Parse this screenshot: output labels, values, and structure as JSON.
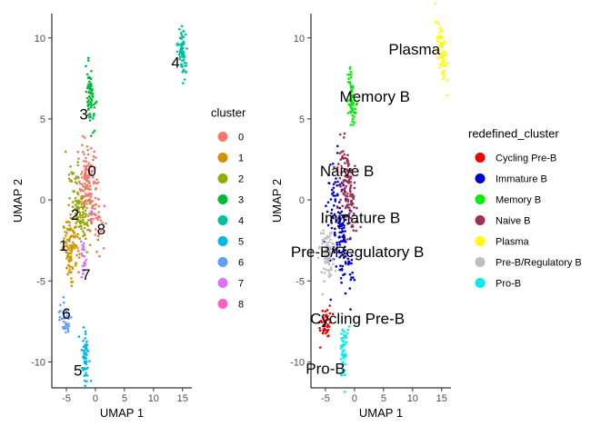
{
  "chart_data": [
    {
      "type": "scatter",
      "xlabel": "UMAP 1",
      "ylabel": "UMAP 2",
      "xlim": [
        -7.5,
        16.6
      ],
      "ylim": [
        -11.6,
        11.5
      ],
      "x_ticks": [
        -5,
        0,
        5,
        10,
        15
      ],
      "y_ticks": [
        -10,
        -5,
        0,
        5,
        10
      ],
      "grid": false,
      "legend": {
        "title": "cluster",
        "position": "right"
      },
      "series": [
        {
          "name": "0",
          "color": "#F8766D",
          "centroid": [
            -1.2,
            0.8
          ],
          "spread": [
            0.9,
            1.4
          ],
          "tilt": -0.35,
          "n": 160
        },
        {
          "name": "1",
          "color": "#D39200",
          "centroid": [
            -4.2,
            -3.0
          ],
          "spread": [
            0.7,
            0.9
          ],
          "tilt": 0.0,
          "n": 110
        },
        {
          "name": "2",
          "color": "#93AA00",
          "centroid": [
            -2.6,
            -0.3
          ],
          "spread": [
            0.8,
            1.2
          ],
          "tilt": -0.3,
          "n": 110
        },
        {
          "name": "3",
          "color": "#00BA38",
          "centroid": [
            -0.8,
            6.2
          ],
          "spread": [
            0.35,
            1.0
          ],
          "tilt": -0.2,
          "n": 70
        },
        {
          "name": "4",
          "color": "#00C19F",
          "centroid": [
            14.9,
            9.2
          ],
          "spread": [
            0.35,
            0.9
          ],
          "tilt": -0.3,
          "n": 70
        },
        {
          "name": "5",
          "color": "#00B9E3",
          "centroid": [
            -1.8,
            -9.5
          ],
          "spread": [
            0.35,
            0.8
          ],
          "tilt": 0.0,
          "n": 55
        },
        {
          "name": "6",
          "color": "#619CFF",
          "centroid": [
            -5.2,
            -7.4
          ],
          "spread": [
            0.5,
            0.5
          ],
          "tilt": 0.0,
          "n": 40
        },
        {
          "name": "7",
          "color": "#DB72FB",
          "centroid": [
            -2.1,
            -3.6
          ],
          "spread": [
            0.2,
            0.7
          ],
          "tilt": 0.0,
          "n": 25
        },
        {
          "name": "8",
          "color": "#FF61C3",
          "centroid": [
            -0.6,
            -1.0
          ],
          "spread": [
            0.2,
            0.4
          ],
          "tilt": 0.0,
          "n": 10
        }
      ],
      "annotations": [
        {
          "text": "0",
          "x": -0.6,
          "y": 1.8
        },
        {
          "text": "1",
          "x": -5.5,
          "y": -2.8
        },
        {
          "text": "2",
          "x": -3.5,
          "y": -0.9
        },
        {
          "text": "3",
          "x": -2.0,
          "y": 5.3
        },
        {
          "text": "4",
          "x": 13.8,
          "y": 8.5
        },
        {
          "text": "5",
          "x": -3.0,
          "y": -10.5
        },
        {
          "text": "6",
          "x": -5.0,
          "y": -7.0
        },
        {
          "text": "7",
          "x": -1.6,
          "y": -4.6
        },
        {
          "text": "8",
          "x": 1.0,
          "y": -1.8
        }
      ]
    },
    {
      "type": "scatter",
      "xlabel": "UMAP 1",
      "ylabel": "UMAP 2",
      "xlim": [
        -7.5,
        16.6
      ],
      "ylim": [
        -11.6,
        11.5
      ],
      "x_ticks": [
        -5,
        0,
        5,
        10,
        15
      ],
      "y_ticks": [
        -10,
        -5,
        0,
        5,
        10
      ],
      "grid": false,
      "legend": {
        "title": "redefined_cluster",
        "position": "right"
      },
      "series": [
        {
          "name": "Cycling Pre-B",
          "color": "#EE0000",
          "centroid": [
            -5.0,
            -7.6
          ],
          "spread": [
            0.5,
            0.5
          ],
          "tilt": 0.0,
          "n": 45
        },
        {
          "name": "Immature B",
          "color": "#0000CC",
          "centroid": [
            -2.5,
            -1.8
          ],
          "spread": [
            0.9,
            1.9
          ],
          "tilt": -0.3,
          "n": 160
        },
        {
          "name": "Memory B",
          "color": "#00EE00",
          "centroid": [
            -0.5,
            6.2
          ],
          "spread": [
            0.35,
            1.0
          ],
          "tilt": -0.2,
          "n": 70
        },
        {
          "name": "Naive B",
          "color": "#A0304F",
          "centroid": [
            -1.2,
            0.8
          ],
          "spread": [
            0.7,
            1.3
          ],
          "tilt": -0.35,
          "n": 130
        },
        {
          "name": "Plasma",
          "color": "#FFFF00",
          "centroid": [
            14.9,
            9.3
          ],
          "spread": [
            0.35,
            0.9
          ],
          "tilt": -0.3,
          "n": 70
        },
        {
          "name": "Pre-B/Regulatory B",
          "color": "#BEBEBE",
          "centroid": [
            -4.8,
            -3.3
          ],
          "spread": [
            0.6,
            0.8
          ],
          "tilt": 0.0,
          "n": 90
        },
        {
          "name": "Pro-B",
          "color": "#00EEEE",
          "centroid": [
            -1.9,
            -9.5
          ],
          "spread": [
            0.35,
            0.8
          ],
          "tilt": 0.0,
          "n": 55
        }
      ],
      "annotations": [
        {
          "text": "Plasma",
          "x": 10.3,
          "y": 9.3
        },
        {
          "text": "Memory B",
          "x": 3.5,
          "y": 6.4
        },
        {
          "text": "Naive B",
          "x": -1.3,
          "y": 1.8
        },
        {
          "text": "Immature B",
          "x": 1.0,
          "y": -1.1
        },
        {
          "text": "Pre-B/Regulatory B",
          "x": 0.5,
          "y": -3.2
        },
        {
          "text": "Cycling Pre-B",
          "x": 0.5,
          "y": -7.3
        },
        {
          "text": "Pro-B",
          "x": -5.0,
          "y": -10.4
        }
      ]
    }
  ]
}
